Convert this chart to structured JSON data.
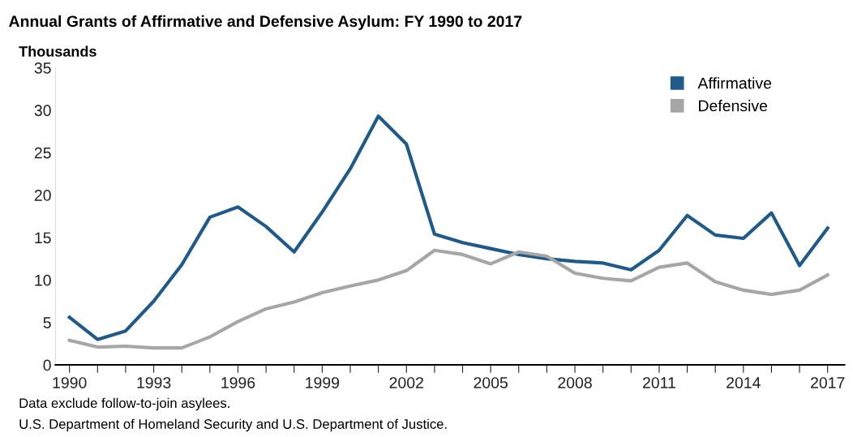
{
  "chart_data": {
    "type": "line",
    "title": "Annual Grants of Affirmative and Defensive Asylum: FY 1990 to 2017",
    "ylabel": "Thousands",
    "x": [
      1990,
      1991,
      1992,
      1993,
      1994,
      1995,
      1996,
      1997,
      1998,
      1999,
      2000,
      2001,
      2002,
      2003,
      2004,
      2005,
      2006,
      2007,
      2008,
      2009,
      2010,
      2011,
      2012,
      2013,
      2014,
      2015,
      2016,
      2017
    ],
    "series": [
      {
        "name": "Affirmative",
        "color": "#1f5a8a",
        "values": [
          5.6,
          3.0,
          4.0,
          7.5,
          11.8,
          17.4,
          18.6,
          16.3,
          13.3,
          18.0,
          23.1,
          29.3,
          26.0,
          15.4,
          14.4,
          13.7,
          13.0,
          12.5,
          12.2,
          12.0,
          11.2,
          13.5,
          17.6,
          15.3,
          14.9,
          17.9,
          11.7,
          16.1
        ]
      },
      {
        "name": "Defensive",
        "color": "#a6a6a6",
        "values": [
          2.9,
          2.1,
          2.2,
          2.0,
          2.0,
          3.3,
          5.1,
          6.6,
          7.4,
          8.5,
          9.3,
          10.0,
          11.1,
          13.5,
          13.0,
          11.9,
          13.3,
          12.8,
          10.8,
          10.2,
          9.9,
          11.5,
          12.0,
          9.8,
          8.8,
          8.3,
          8.8,
          10.6
        ]
      }
    ],
    "xlim": [
      1989.5,
      2017.6
    ],
    "xticks": [
      1990,
      {
        "value": 1991,
        "label": null
      },
      {
        "value": 1992,
        "label": null
      },
      1993,
      {
        "value": 1994,
        "label": null
      },
      {
        "value": 1995,
        "label": null
      },
      1996,
      {
        "value": 1997,
        "label": null
      },
      {
        "value": 1998,
        "label": null
      },
      1999,
      {
        "value": 2000,
        "label": null
      },
      {
        "value": 2001,
        "label": null
      },
      2002,
      {
        "value": 2003,
        "label": null
      },
      {
        "value": 2004,
        "label": null
      },
      2005,
      {
        "value": 2006,
        "label": null
      },
      {
        "value": 2007,
        "label": null
      },
      2008,
      {
        "value": 2009,
        "label": null
      },
      {
        "value": 2010,
        "label": null
      },
      2011,
      {
        "value": 2012,
        "label": null
      },
      {
        "value": 2013,
        "label": null
      },
      2014,
      {
        "value": 2015,
        "label": null
      },
      {
        "value": 2016,
        "label": null
      },
      2017
    ],
    "ylim": [
      0,
      35
    ],
    "yticks": [
      0,
      5,
      10,
      15,
      20,
      25,
      30,
      35
    ],
    "grid": false,
    "legend": "top right",
    "marker": "none",
    "line_style": "solid",
    "annotations": [
      "Data exclude follow-to-join asylees.",
      "U.S. Department of Homeland Security and U.S. Department of Justice."
    ]
  }
}
